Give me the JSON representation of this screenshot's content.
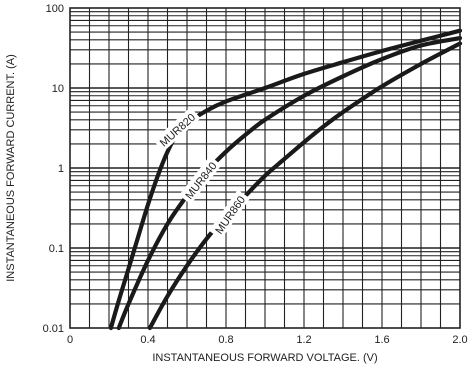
{
  "chart_data": {
    "type": "line",
    "title": "",
    "xlabel": "INSTANTANEOUS FORWARD VOLTAGE. (V)",
    "ylabel": "INSTANTANEOUS FORWARD CURRENT. (A)",
    "xlim": [
      0,
      2.0
    ],
    "ylim": [
      0.01,
      100
    ],
    "yscale": "log",
    "grid": true,
    "x_ticks": [
      0,
      0.4,
      0.8,
      1.2,
      1.6,
      2.0
    ],
    "x_tick_labels": [
      "0",
      "0.4",
      "0.8",
      "1.2",
      "1.6",
      "2.0"
    ],
    "y_ticks": [
      0.01,
      0.1,
      1,
      10,
      100
    ],
    "y_tick_labels": [
      "0.01",
      "0.1",
      "1",
      "10",
      "100"
    ],
    "series": [
      {
        "name": "MUR820",
        "x": [
          0.21,
          0.25,
          0.3,
          0.35,
          0.4,
          0.45,
          0.5,
          0.55,
          0.6,
          0.7,
          0.8,
          1.0,
          1.2,
          1.4,
          1.6,
          1.8,
          2.0
        ],
        "y": [
          0.01,
          0.022,
          0.055,
          0.14,
          0.35,
          0.8,
          1.6,
          2.7,
          3.6,
          5.2,
          6.8,
          10,
          15,
          21,
          29,
          39,
          52
        ]
      },
      {
        "name": "MUR840",
        "x": [
          0.25,
          0.3,
          0.4,
          0.5,
          0.6,
          0.7,
          0.8,
          0.9,
          1.0,
          1.2,
          1.4,
          1.6,
          1.8,
          2.0
        ],
        "y": [
          0.01,
          0.02,
          0.07,
          0.2,
          0.45,
          0.9,
          1.6,
          2.6,
          4,
          8,
          14,
          23,
          34,
          42
        ]
      },
      {
        "name": "MUR860",
        "x": [
          0.41,
          0.5,
          0.6,
          0.7,
          0.8,
          0.9,
          1.0,
          1.1,
          1.2,
          1.3,
          1.4,
          1.6,
          1.8,
          2.0
        ],
        "y": [
          0.01,
          0.025,
          0.06,
          0.13,
          0.25,
          0.45,
          0.8,
          1.3,
          2.1,
          3.3,
          5,
          10.5,
          20,
          36
        ]
      }
    ]
  }
}
